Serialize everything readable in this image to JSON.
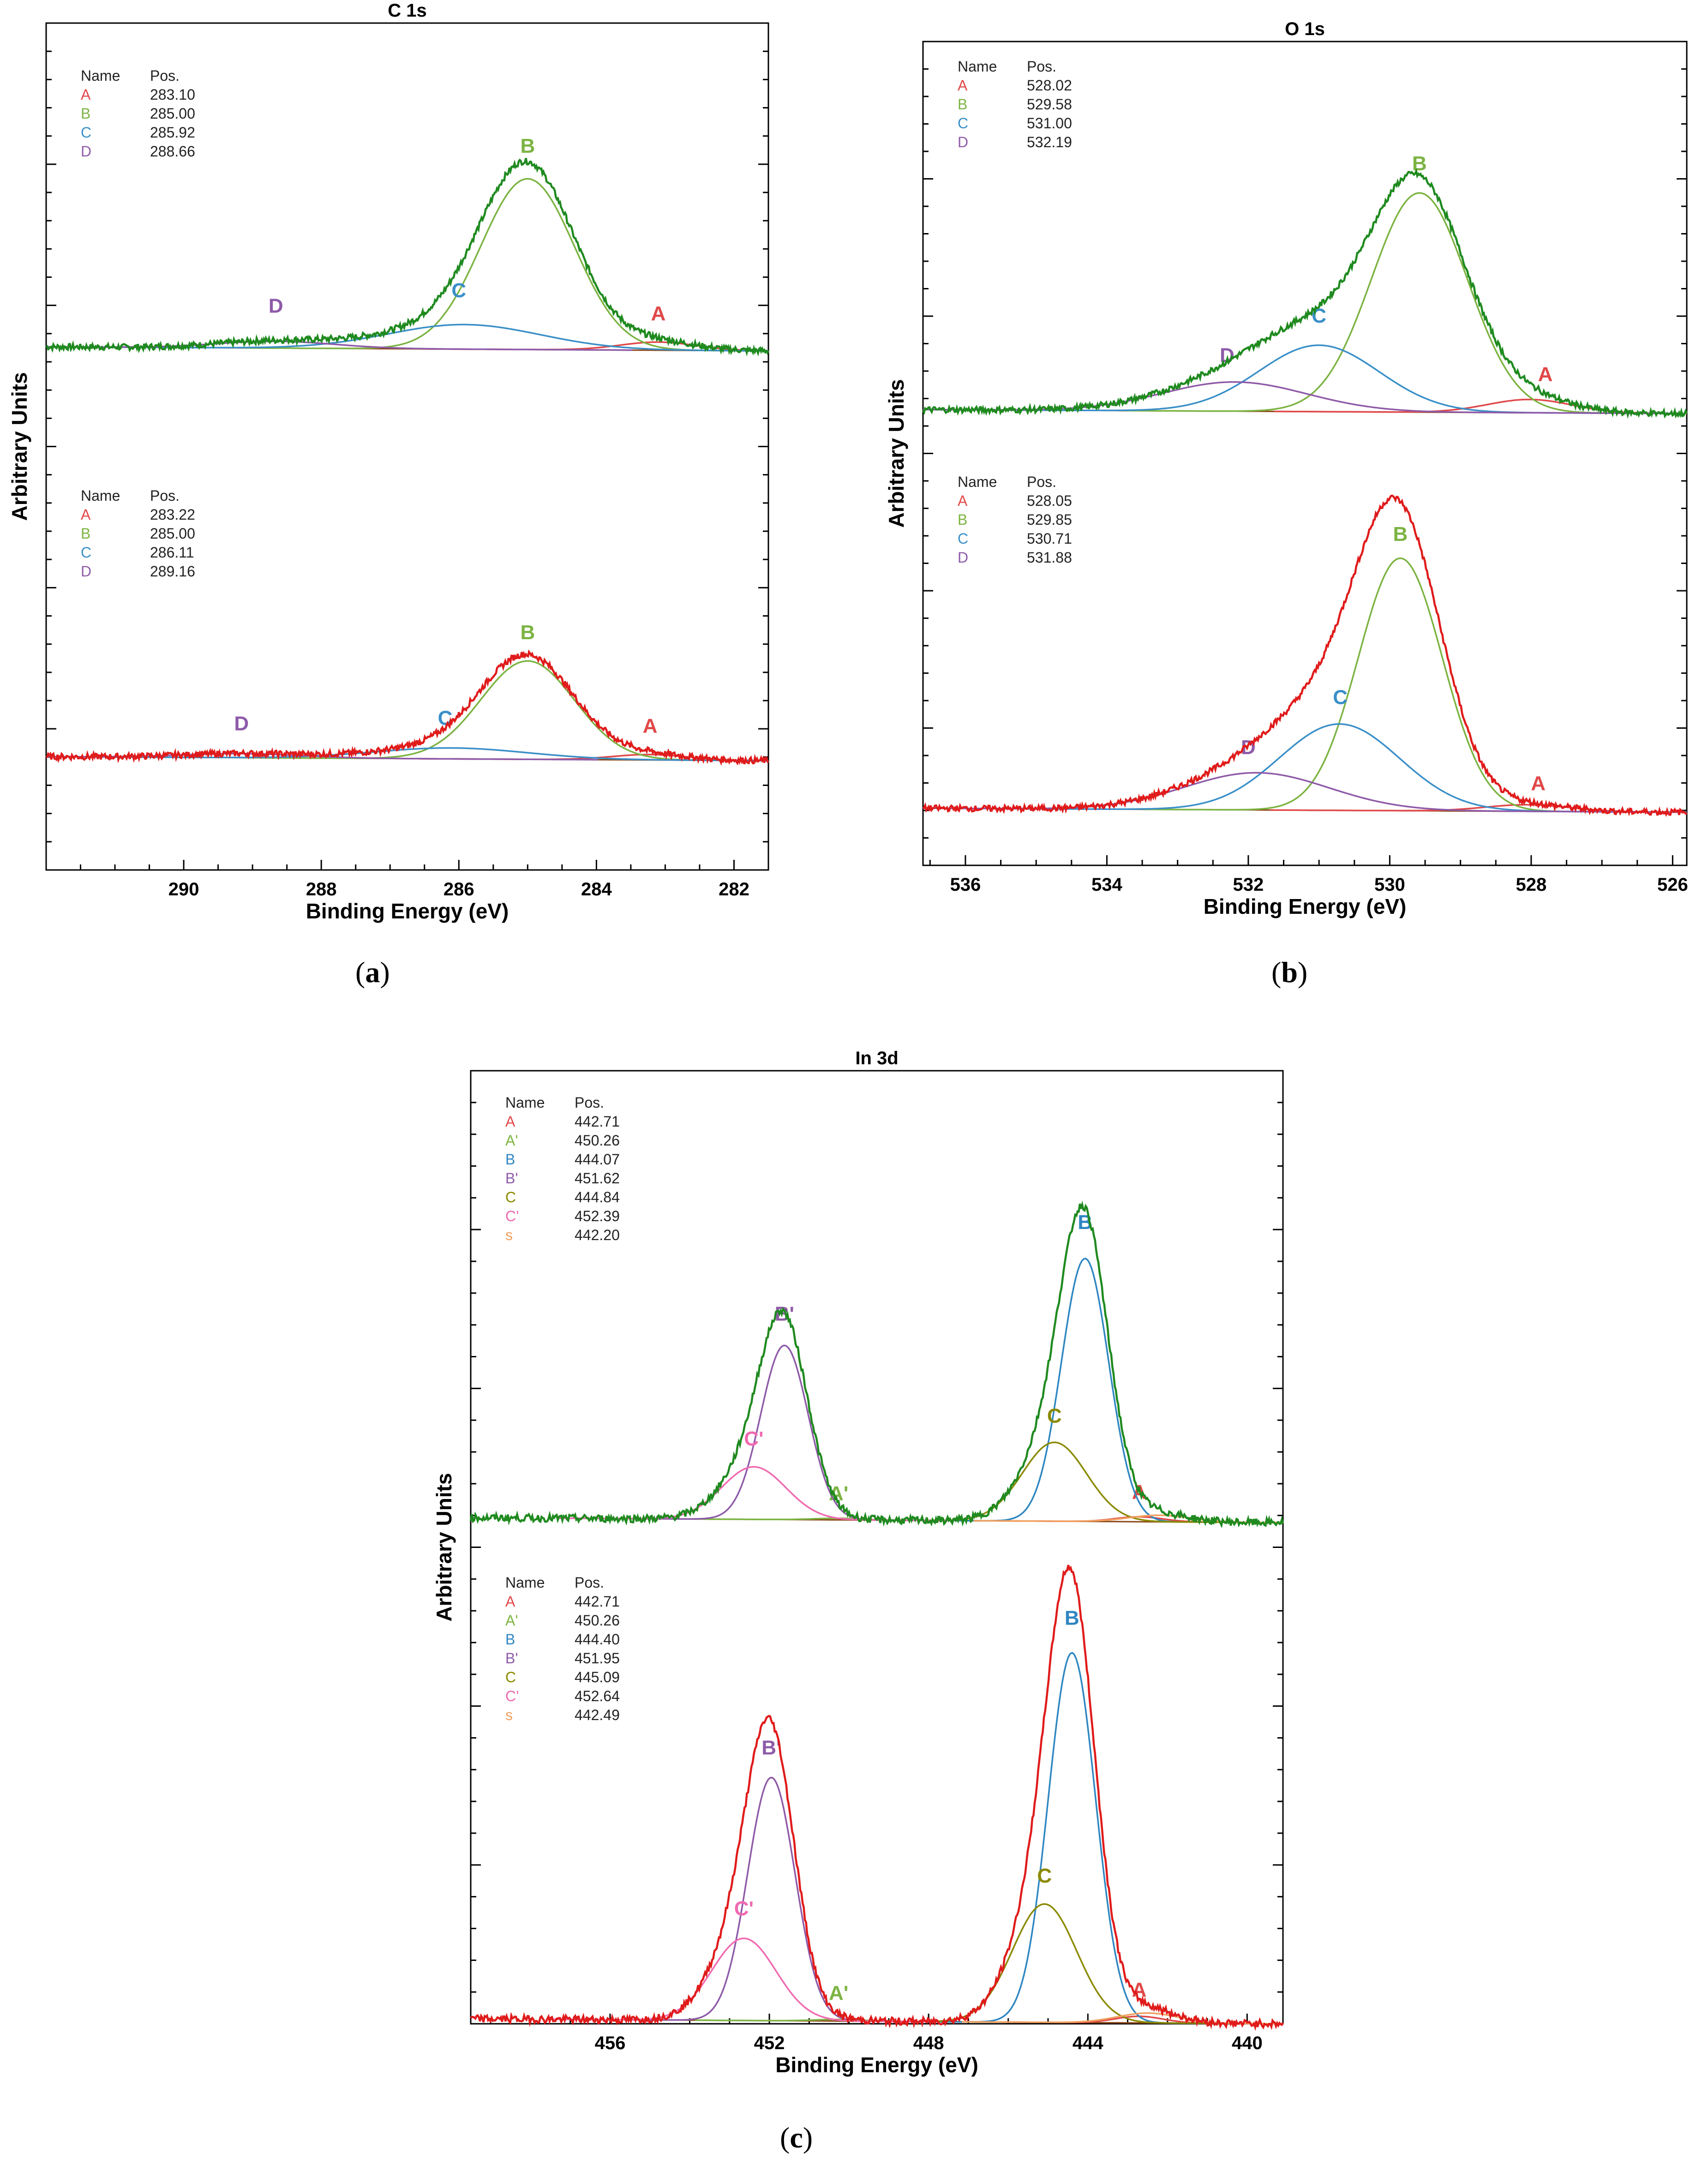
{
  "captions": {
    "a": "a",
    "b": "b",
    "c": "c"
  },
  "colors": {
    "A": "#e04848",
    "B_c1s": "#7cb342",
    "C_c1s": "#3a8fc8",
    "D": "#8e5aa8",
    "Aprime": "#7cb342",
    "B_in": "#2e86c1",
    "Bprime": "#8e5aa8",
    "C_in": "#8a8a00",
    "Cprime": "#f06ab0",
    "s": "#f0a060",
    "envelope_top": "#1f8a1f",
    "envelope_bottom": "#e01b1b",
    "baseline": "#8b4513"
  },
  "chart_data": [
    {
      "id": "c1s",
      "type": "line",
      "title": "C 1s",
      "xlabel": "Binding Energy (eV)",
      "ylabel": "Arbitrary Units",
      "xlim": [
        292,
        281.5
      ],
      "xticks": [
        290,
        288,
        286,
        284,
        282
      ],
      "xtick_labels": [
        "290",
        "288",
        "286",
        "284",
        "282"
      ],
      "spectra": [
        {
          "envelope_color": "envelope_top",
          "offset": 3.8,
          "table": {
            "header": [
              "Name",
              "Pos."
            ],
            "rows": [
              [
                "A",
                "283.10",
                "A"
              ],
              [
                "B",
                "285.00",
                "B_c1s"
              ],
              [
                "C",
                "285.92",
                "C_c1s"
              ],
              [
                "D",
                "288.66",
                "D"
              ]
            ]
          },
          "components": [
            {
              "name": "A",
              "pos": 283.1,
              "height": 0.06,
              "fwhm": 1.3,
              "color": "A",
              "label_x": 283.1,
              "label_h": 0.22
            },
            {
              "name": "B",
              "pos": 285.0,
              "height": 1.25,
              "fwhm": 1.6,
              "color": "B_c1s",
              "label_x": 285.0,
              "label_h": 1.44
            },
            {
              "name": "C",
              "pos": 285.92,
              "height": 0.18,
              "fwhm": 2.6,
              "color": "C_c1s",
              "label_x": 286.0,
              "label_h": 0.38
            },
            {
              "name": "D",
              "pos": 288.66,
              "height": 0.05,
              "fwhm": 2.0,
              "color": "D",
              "label_x": 288.66,
              "label_h": 0.26
            }
          ]
        },
        {
          "envelope_color": "envelope_bottom",
          "offset": 0.8,
          "table": {
            "header": [
              "Name",
              "Pos."
            ],
            "rows": [
              [
                "A",
                "283.22",
                "A"
              ],
              [
                "B",
                "285.00",
                "B_c1s"
              ],
              [
                "C",
                "286.11",
                "C_c1s"
              ],
              [
                "D",
                "289.16",
                "D"
              ]
            ]
          },
          "components": [
            {
              "name": "A",
              "pos": 283.22,
              "height": 0.04,
              "fwhm": 1.3,
              "color": "A",
              "label_x": 283.22,
              "label_h": 0.2
            },
            {
              "name": "B",
              "pos": 285.0,
              "height": 0.72,
              "fwhm": 1.6,
              "color": "B_c1s",
              "label_x": 285.0,
              "label_h": 0.88
            },
            {
              "name": "C",
              "pos": 286.11,
              "height": 0.08,
              "fwhm": 2.6,
              "color": "C_c1s",
              "label_x": 286.2,
              "label_h": 0.25
            },
            {
              "name": "D",
              "pos": 289.16,
              "height": 0.03,
              "fwhm": 2.0,
              "color": "D",
              "label_x": 289.16,
              "label_h": 0.2
            }
          ]
        }
      ],
      "ylim": [
        0,
        6.2
      ]
    },
    {
      "id": "o1s",
      "type": "line",
      "title": "O 1s",
      "xlabel": "Binding Energy (eV)",
      "ylabel": "Arbitrary Units",
      "xlim": [
        536.6,
        525.8
      ],
      "xticks": [
        536,
        534,
        532,
        530,
        528,
        526
      ],
      "xtick_labels": [
        "536",
        "534",
        "532",
        "530",
        "528",
        "526"
      ],
      "spectra": [
        {
          "envelope_color": "envelope_top",
          "offset": 3.4,
          "table": {
            "header": [
              "Name",
              "Pos."
            ],
            "rows": [
              [
                "A",
                "528.02",
                "A"
              ],
              [
                "B",
                "529.58",
                "B_c1s"
              ],
              [
                "C",
                "531.00",
                "C_c1s"
              ],
              [
                "D",
                "532.19",
                "D"
              ]
            ]
          },
          "components": [
            {
              "name": "A",
              "pos": 528.02,
              "height": 0.1,
              "fwhm": 1.4,
              "color": "A",
              "label_x": 527.8,
              "label_h": 0.24
            },
            {
              "name": "B",
              "pos": 529.58,
              "height": 1.65,
              "fwhm": 1.6,
              "color": "B_c1s",
              "label_x": 529.58,
              "label_h": 1.82
            },
            {
              "name": "C",
              "pos": 531.0,
              "height": 0.5,
              "fwhm": 2.0,
              "color": "C_c1s",
              "label_x": 531.0,
              "label_h": 0.67
            },
            {
              "name": "D",
              "pos": 532.19,
              "height": 0.22,
              "fwhm": 2.4,
              "color": "D",
              "label_x": 532.3,
              "label_h": 0.37
            }
          ]
        },
        {
          "envelope_color": "envelope_bottom",
          "offset": 0.4,
          "table": {
            "header": [
              "Name",
              "Pos."
            ],
            "rows": [
              [
                "A",
                "528.05",
                "A"
              ],
              [
                "B",
                "529.85",
                "B_c1s"
              ],
              [
                "C",
                "530.71",
                "C_c1s"
              ],
              [
                "D",
                "531.88",
                "D"
              ]
            ]
          },
          "components": [
            {
              "name": "A",
              "pos": 528.05,
              "height": 0.05,
              "fwhm": 1.4,
              "color": "A",
              "label_x": 527.9,
              "label_h": 0.16
            },
            {
              "name": "B",
              "pos": 529.85,
              "height": 1.9,
              "fwhm": 1.4,
              "color": "B_c1s",
              "label_x": 529.85,
              "label_h": 2.03
            },
            {
              "name": "C",
              "pos": 530.71,
              "height": 0.65,
              "fwhm": 2.0,
              "color": "C_c1s",
              "label_x": 530.7,
              "label_h": 0.8
            },
            {
              "name": "D",
              "pos": 531.88,
              "height": 0.28,
              "fwhm": 2.4,
              "color": "D",
              "label_x": 532.0,
              "label_h": 0.42
            }
          ]
        }
      ],
      "ylim": [
        0,
        6.2
      ]
    },
    {
      "id": "in3d",
      "type": "line",
      "title": "In 3d",
      "xlabel": "Binding Energy (eV)",
      "ylabel": "Arbitrary Units",
      "xlim": [
        459.5,
        439.1
      ],
      "xticks": [
        456,
        452,
        448,
        444,
        440
      ],
      "xtick_labels": [
        "456",
        "452",
        "448",
        "444",
        "440"
      ],
      "spectra": [
        {
          "envelope_color": "envelope_top",
          "offset": 3.05,
          "table": {
            "header": [
              "Name",
              "Pos."
            ],
            "rows": [
              [
                "A",
                "442.71",
                "A"
              ],
              [
                "A'",
                "450.26",
                "Aprime"
              ],
              [
                "B",
                "444.07",
                "B_in"
              ],
              [
                "B'",
                "451.62",
                "Bprime"
              ],
              [
                "C",
                "444.84",
                "C_in"
              ],
              [
                "C'",
                "452.39",
                "Cprime"
              ],
              [
                "s",
                "442.20",
                "s"
              ]
            ]
          },
          "components": [
            {
              "name": "A",
              "pos": 442.71,
              "height": 0.03,
              "fwhm": 1.4,
              "color": "A",
              "label_x": 442.71,
              "label_h": 0.14
            },
            {
              "name": "A'",
              "pos": 450.26,
              "height": 0.01,
              "fwhm": 1.4,
              "color": "Aprime",
              "label_x": 450.26,
              "label_h": 0.12
            },
            {
              "name": "B",
              "pos": 444.07,
              "height": 1.6,
              "fwhm": 1.4,
              "color": "B_in",
              "label_x": 444.07,
              "label_h": 1.78
            },
            {
              "name": "B'",
              "pos": 451.62,
              "height": 1.06,
              "fwhm": 1.4,
              "color": "Bprime",
              "label_x": 451.62,
              "label_h": 1.21
            },
            {
              "name": "C",
              "pos": 444.84,
              "height": 0.48,
              "fwhm": 1.9,
              "color": "C_in",
              "label_x": 444.84,
              "label_h": 0.6
            },
            {
              "name": "C'",
              "pos": 452.39,
              "height": 0.32,
              "fwhm": 1.9,
              "color": "Cprime",
              "label_x": 452.39,
              "label_h": 0.45
            },
            {
              "name": "s",
              "pos": 442.2,
              "height": 0.04,
              "fwhm": 1.8,
              "color": "s",
              "label_x": 442.2,
              "label_h": 0.1,
              "no_label": true
            }
          ]
        },
        {
          "envelope_color": "envelope_bottom",
          "offset": 0.0,
          "table": {
            "header": [
              "Name",
              "Pos."
            ],
            "rows": [
              [
                "A",
                "442.71",
                "A"
              ],
              [
                "A'",
                "450.26",
                "Aprime"
              ],
              [
                "B",
                "444.40",
                "B_in"
              ],
              [
                "B'",
                "451.95",
                "Bprime"
              ],
              [
                "C",
                "445.09",
                "C_in"
              ],
              [
                "C'",
                "452.64",
                "Cprime"
              ],
              [
                "s",
                "442.49",
                "s"
              ]
            ]
          },
          "components": [
            {
              "name": "A",
              "pos": 442.71,
              "height": 0.04,
              "fwhm": 1.4,
              "color": "A",
              "label_x": 442.71,
              "label_h": 0.16
            },
            {
              "name": "A'",
              "pos": 450.26,
              "height": 0.01,
              "fwhm": 1.4,
              "color": "Aprime",
              "label_x": 450.26,
              "label_h": 0.13
            },
            {
              "name": "B",
              "pos": 444.4,
              "height": 2.25,
              "fwhm": 1.4,
              "color": "B_in",
              "label_x": 444.4,
              "label_h": 2.42
            },
            {
              "name": "B'",
              "pos": 451.95,
              "height": 1.48,
              "fwhm": 1.4,
              "color": "Bprime",
              "label_x": 451.95,
              "label_h": 1.62
            },
            {
              "name": "C",
              "pos": 445.09,
              "height": 0.72,
              "fwhm": 1.9,
              "color": "C_in",
              "label_x": 445.09,
              "label_h": 0.85
            },
            {
              "name": "C'",
              "pos": 452.64,
              "height": 0.5,
              "fwhm": 1.9,
              "color": "Cprime",
              "label_x": 452.64,
              "label_h": 0.64
            },
            {
              "name": "s",
              "pos": 442.49,
              "height": 0.06,
              "fwhm": 1.8,
              "color": "s",
              "label_x": 442.49,
              "label_h": 0.1,
              "no_label": true
            }
          ]
        }
      ],
      "ylim": [
        0,
        5.8
      ]
    }
  ]
}
